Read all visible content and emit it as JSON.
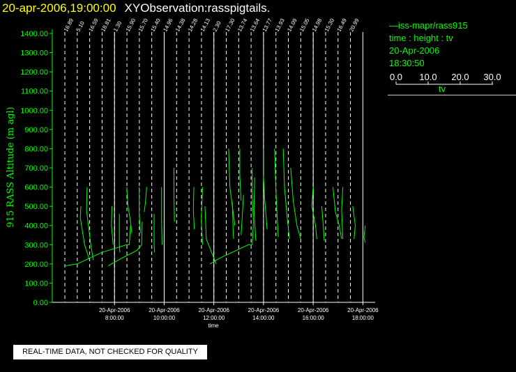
{
  "header": {
    "datetime": "20-apr-2006,19:00:00",
    "observation": "XYObservation:rasspigtails."
  },
  "legend": {
    "name": "iss-mapr/rass915",
    "variables": "time : height : tv",
    "date": "20-Apr-2006",
    "time": "18:30:50",
    "scale_ticks": [
      "0.0",
      "10.0",
      "20.0",
      "30.0"
    ],
    "scale_label": "tv"
  },
  "note": "REAL-TIME DATA, NOT CHECKED FOR QUALITY",
  "colors": {
    "data": "#00ff00",
    "axis": "#ffffff",
    "title_date": "#ffff00"
  },
  "chart_data": {
    "type": "line",
    "title": "20-apr-2006,19:00:00  XYObservation:rasspigtails.",
    "xlabel": "time",
    "ylabel": "915 RASS Altitude (m agl)",
    "ylim": [
      0,
      1400
    ],
    "y_ticks": [
      "0.00",
      "100.00",
      "200.00",
      "300.00",
      "400.00",
      "500.00",
      "600.00",
      "700.00",
      "800.00",
      "900.00",
      "1000.00",
      "1100.00",
      "1200.00",
      "1300.00",
      "1400.00"
    ],
    "xlim": [
      "06:00",
      "19:00"
    ],
    "x_ticks": [
      {
        "date": "20-Apr-2006",
        "time": "8:00:00",
        "hour": 8
      },
      {
        "date": "20-Apr-2006",
        "time": "10:00:00",
        "hour": 10
      },
      {
        "date": "20-Apr-2006",
        "time": "12:00:00",
        "hour": 12
      },
      {
        "date": "20-Apr-2006",
        "time": "14:00:00",
        "hour": 14
      },
      {
        "date": "20-Apr-2006",
        "time": "16:00:00",
        "hour": 16
      },
      {
        "date": "20-Apr-2006",
        "time": "18:00:00",
        "hour": 18
      }
    ],
    "profiles": [
      {
        "label": "16.89",
        "hour": 6.0
      },
      {
        "label": "5.10",
        "hour": 6.5
      },
      {
        "label": "16.59",
        "hour": 7.0
      },
      {
        "label": "18.81",
        "hour": 7.5
      },
      {
        "label": "1.30",
        "hour": 8.0
      },
      {
        "label": "15.90",
        "hour": 8.5
      },
      {
        "label": "15.70",
        "hour": 9.0
      },
      {
        "label": "15.40",
        "hour": 9.5
      },
      {
        "label": "14.96",
        "hour": 10.0
      },
      {
        "label": "14.38",
        "hour": 10.5
      },
      {
        "label": "14.28",
        "hour": 11.0
      },
      {
        "label": "14.13",
        "hour": 11.5
      },
      {
        "label": "2.30",
        "hour": 12.0
      },
      {
        "label": "17.30",
        "hour": 12.5
      },
      {
        "label": "13.74",
        "hour": 13.0
      },
      {
        "label": "13.64",
        "hour": 13.5
      },
      {
        "label": "13.77",
        "hour": 14.0
      },
      {
        "label": "13.93",
        "hour": 14.5
      },
      {
        "label": "14.09",
        "hour": 15.0
      },
      {
        "label": "15.05",
        "hour": 15.5
      },
      {
        "label": "14.98",
        "hour": 16.0
      },
      {
        "label": "15.30",
        "hour": 16.5
      },
      {
        "label": "16.49",
        "hour": 17.0
      },
      {
        "label": "20.99",
        "hour": 17.5
      }
    ],
    "traces": [
      [
        [
          7.15,
          500
        ],
        [
          7.13,
          440
        ],
        [
          7.3,
          300
        ],
        [
          7.5,
          220
        ]
      ],
      [
        [
          7.4,
          600
        ],
        [
          7.38,
          480
        ],
        [
          7.55,
          300
        ],
        [
          7.65,
          220
        ]
      ],
      [
        [
          6.5,
          190
        ],
        [
          7.0,
          200
        ],
        [
          7.5,
          230
        ],
        [
          8.0,
          260
        ],
        [
          8.5,
          280
        ],
        [
          9.0,
          300
        ],
        [
          9.1,
          300
        ],
        [
          9.15,
          400
        ]
      ],
      [
        [
          8.4,
          500
        ],
        [
          8.38,
          400
        ],
        [
          8.45,
          300
        ]
      ],
      [
        [
          8.7,
          460
        ],
        [
          8.7,
          300
        ],
        [
          8.72,
          260
        ]
      ],
      [
        [
          9.0,
          600
        ],
        [
          9.05,
          500
        ],
        [
          9.15,
          420
        ],
        [
          9.2,
          360
        ]
      ],
      [
        [
          8.25,
          190
        ],
        [
          8.8,
          230
        ],
        [
          9.4,
          270
        ],
        [
          9.6,
          300
        ],
        [
          9.62,
          420
        ]
      ],
      [
        [
          9.5,
          600
        ],
        [
          9.5,
          460
        ],
        [
          9.55,
          360
        ]
      ],
      [
        [
          9.8,
          600
        ],
        [
          9.75,
          520
        ],
        [
          9.7,
          470
        ]
      ],
      [
        [
          10.1,
          460
        ],
        [
          10.1,
          300
        ],
        [
          10.12,
          260
        ]
      ],
      [
        [
          10.4,
          600
        ],
        [
          10.4,
          430
        ],
        [
          10.42,
          300
        ]
      ],
      [
        [
          10.9,
          700
        ],
        [
          10.9,
          560
        ],
        [
          10.92,
          420
        ]
      ],
      [
        [
          11.7,
          600
        ],
        [
          11.68,
          480
        ],
        [
          11.72,
          380
        ]
      ],
      [
        [
          12.05,
          600
        ],
        [
          12.0,
          430
        ],
        [
          12.05,
          300
        ]
      ],
      [
        [
          12.35,
          200
        ],
        [
          12.6,
          220
        ],
        [
          12.9,
          240
        ],
        [
          13.4,
          270
        ],
        [
          13.9,
          300
        ],
        [
          14.05,
          300
        ],
        [
          14.1,
          420
        ]
      ],
      [
        [
          12.15,
          500
        ],
        [
          12.2,
          330
        ],
        [
          12.6,
          200
        ]
      ],
      [
        [
          13.1,
          800
        ],
        [
          13.15,
          600
        ],
        [
          13.35,
          400
        ]
      ],
      [
        [
          13.55,
          800
        ],
        [
          13.55,
          660
        ],
        [
          13.6,
          530
        ]
      ],
      [
        [
          13.25,
          520
        ],
        [
          13.28,
          380
        ],
        [
          13.3,
          330
        ]
      ],
      [
        [
          13.7,
          560
        ],
        [
          13.65,
          450
        ],
        [
          13.6,
          350
        ]
      ],
      [
        [
          14.5,
          800
        ],
        [
          14.5,
          670
        ],
        [
          14.55,
          540
        ],
        [
          14.65,
          380
        ]
      ],
      [
        [
          14.05,
          700
        ],
        [
          14.05,
          550
        ],
        [
          14.1,
          420
        ]
      ],
      [
        [
          14.15,
          650
        ],
        [
          14.12,
          480
        ],
        [
          14.2,
          320
        ]
      ],
      [
        [
          14.95,
          800
        ],
        [
          15.0,
          600
        ],
        [
          15.05,
          460
        ],
        [
          15.1,
          340
        ]
      ],
      [
        [
          15.3,
          800
        ],
        [
          15.35,
          600
        ],
        [
          15.45,
          450
        ],
        [
          15.55,
          330
        ]
      ],
      [
        [
          15.6,
          700
        ],
        [
          15.7,
          530
        ],
        [
          15.85,
          400
        ],
        [
          16.0,
          330
        ]
      ],
      [
        [
          16.5,
          600
        ],
        [
          16.45,
          500
        ],
        [
          16.6,
          400
        ],
        [
          16.65,
          330
        ]
      ],
      [
        [
          16.85,
          500
        ],
        [
          16.9,
          420
        ],
        [
          16.95,
          320
        ]
      ],
      [
        [
          17.3,
          600
        ],
        [
          17.4,
          470
        ],
        [
          17.55,
          400
        ],
        [
          17.65,
          330
        ]
      ],
      [
        [
          17.7,
          600
        ],
        [
          17.65,
          480
        ],
        [
          17.7,
          330
        ]
      ],
      [
        [
          18.1,
          500
        ],
        [
          18.2,
          400
        ],
        [
          18.15,
          330
        ]
      ],
      [
        [
          18.6,
          400
        ],
        [
          18.55,
          340
        ],
        [
          18.6,
          310
        ]
      ]
    ]
  }
}
